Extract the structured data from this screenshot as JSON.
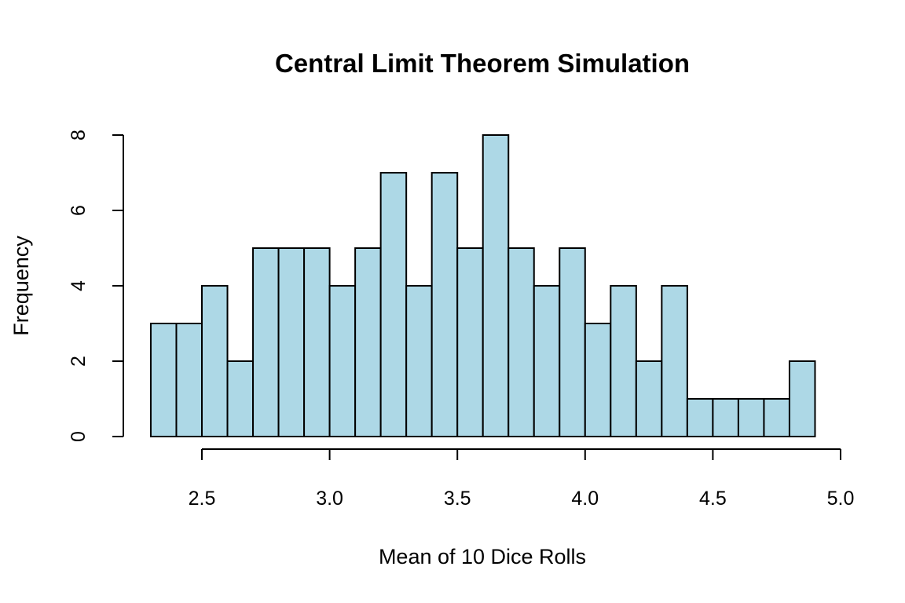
{
  "chart_data": {
    "type": "bar",
    "title": "Central Limit Theorem Simulation",
    "xlabel": "Mean of 10 Dice Rolls",
    "ylabel": "Frequency",
    "bar_color": "#ADD8E6",
    "xlim": [
      2.5,
      5.0
    ],
    "ylim": [
      0,
      8
    ],
    "x_ticks": [
      "2.5",
      "3.0",
      "3.5",
      "4.0",
      "4.5",
      "5.0"
    ],
    "y_ticks": [
      "0",
      "2",
      "4",
      "6",
      "8"
    ],
    "grid": false,
    "bins": [
      {
        "start": 2.3,
        "end": 2.4,
        "count": 3
      },
      {
        "start": 2.4,
        "end": 2.5,
        "count": 3
      },
      {
        "start": 2.5,
        "end": 2.6,
        "count": 4
      },
      {
        "start": 2.6,
        "end": 2.7,
        "count": 2
      },
      {
        "start": 2.7,
        "end": 2.8,
        "count": 5
      },
      {
        "start": 2.8,
        "end": 2.9,
        "count": 5
      },
      {
        "start": 2.9,
        "end": 3.0,
        "count": 5
      },
      {
        "start": 3.0,
        "end": 3.1,
        "count": 4
      },
      {
        "start": 3.1,
        "end": 3.2,
        "count": 5
      },
      {
        "start": 3.2,
        "end": 3.3,
        "count": 7
      },
      {
        "start": 3.3,
        "end": 3.4,
        "count": 4
      },
      {
        "start": 3.4,
        "end": 3.5,
        "count": 7
      },
      {
        "start": 3.5,
        "end": 3.6,
        "count": 5
      },
      {
        "start": 3.6,
        "end": 3.7,
        "count": 8
      },
      {
        "start": 3.7,
        "end": 3.8,
        "count": 5
      },
      {
        "start": 3.8,
        "end": 3.9,
        "count": 4
      },
      {
        "start": 3.9,
        "end": 4.0,
        "count": 5
      },
      {
        "start": 4.0,
        "end": 4.1,
        "count": 3
      },
      {
        "start": 4.1,
        "end": 4.2,
        "count": 4
      },
      {
        "start": 4.2,
        "end": 4.3,
        "count": 2
      },
      {
        "start": 4.3,
        "end": 4.4,
        "count": 4
      },
      {
        "start": 4.4,
        "end": 4.5,
        "count": 1
      },
      {
        "start": 4.5,
        "end": 4.6,
        "count": 1
      },
      {
        "start": 4.6,
        "end": 4.7,
        "count": 1
      },
      {
        "start": 4.7,
        "end": 4.8,
        "count": 1
      },
      {
        "start": 4.8,
        "end": 4.9,
        "count": 2
      }
    ]
  }
}
